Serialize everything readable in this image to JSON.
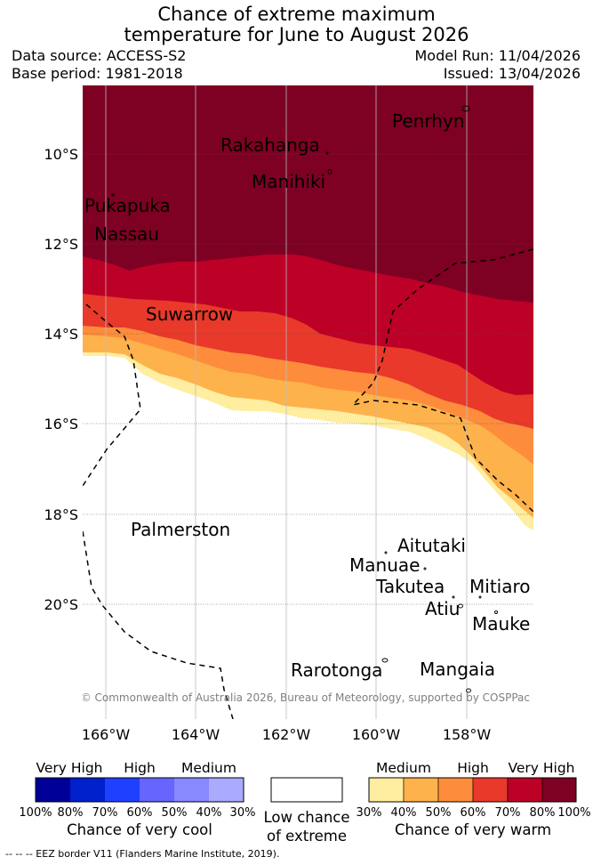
{
  "title_line1": "Chance of extreme maximum",
  "title_line2": "temperature for June to August 2026",
  "data_source": "Data source: ACCESS-S2",
  "base_period": "Base period: 1981-2018",
  "model_run": "Model Run: 11/04/2026",
  "issued": "Issued: 13/04/2026",
  "map": {
    "lat_labels": [
      "10°S",
      "12°S",
      "14°S",
      "16°S",
      "18°S",
      "20°S"
    ],
    "lon_labels": [
      "166°W",
      "164°W",
      "162°W",
      "160°W",
      "158°W"
    ],
    "places": [
      "Penrhyn",
      "Rakahanga",
      "Manihiki",
      "Pukapuka",
      "Nassau",
      "Suwarrow",
      "Palmerston",
      "Aitutaki",
      "Manuae",
      "Takutea",
      "Mitiaro",
      "Atiu",
      "Mauke",
      "Rarotonga",
      "Mangaia"
    ],
    "copyright": "© Commonwealth of Australia 2026, Bureau of Meteorology, supported by COSPPac",
    "colors": {
      "very_warm_80": "#7e0023",
      "very_warm_70": "#bd0026",
      "warm_60": "#e8392b",
      "warm_50": "#fd8d3c",
      "warm_40": "#feb24c",
      "warm_30": "#ffeda0"
    }
  },
  "legend_cool": {
    "labels": [
      "Very High",
      "High",
      "Medium"
    ],
    "percentages": [
      "100%",
      "80%",
      "70%",
      "60%",
      "50%",
      "40%",
      "30%"
    ],
    "caption": "Chance of very cool",
    "colors": [
      "#000099",
      "#0020cc",
      "#2040ff",
      "#6666ff",
      "#8888ff",
      "#aaaaff"
    ]
  },
  "legend_low": {
    "caption_line1": "Low chance",
    "caption_line2": "of extreme"
  },
  "legend_warm": {
    "labels": [
      "Medium",
      "High",
      "Very High"
    ],
    "percentages": [
      "30%",
      "40%",
      "50%",
      "60%",
      "70%",
      "80%",
      "100%"
    ],
    "caption": "Chance of very warm",
    "colors": [
      "#ffeda0",
      "#feb24c",
      "#fd8d3c",
      "#e8392b",
      "#bd0026",
      "#7e0023"
    ]
  },
  "footer": "--  --  -- EEZ border V11 (Flanders Marine Institute, 2019)."
}
